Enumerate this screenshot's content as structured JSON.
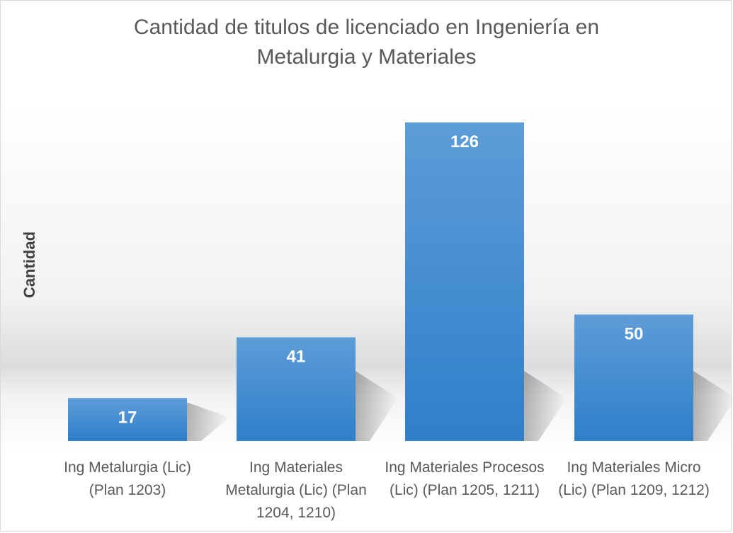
{
  "chart_data": {
    "type": "bar",
    "title": "Cantidad de titulos de licenciado en Ingeniería en Metalurgia y Materiales",
    "title_lines": [
      "Cantidad de titulos de licenciado en Ingeniería en",
      "Metalurgia y Materiales"
    ],
    "xlabel": "",
    "ylabel": "Cantidad",
    "categories": [
      "Ing Metalurgia (Lic) (Plan 1203)",
      "Ing Materiales Metalurgia (Lic) (Plan 1204, 1210)",
      "Ing Materiales Procesos (Lic) (Plan 1205, 1211)",
      "Ing Materiales Micro (Lic) (Plan 1209, 1212)"
    ],
    "values": [
      17,
      41,
      126,
      50
    ],
    "data_labels": [
      "17",
      "41",
      "126",
      "50"
    ],
    "ylim": [
      0,
      135
    ],
    "grid": false,
    "legend": "none",
    "colors": {
      "bar": "#3a87cf",
      "bar_light": "#5b9bd5",
      "label": "#ffffff"
    }
  }
}
